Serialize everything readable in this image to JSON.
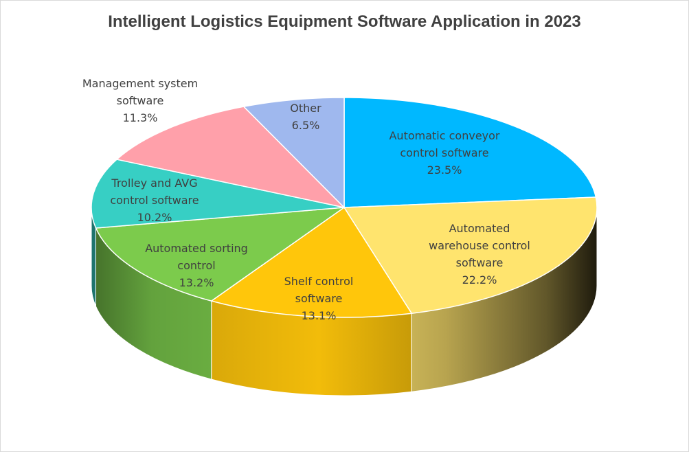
{
  "chart_data": {
    "type": "pie",
    "title": "Intelligent Logistics Equipment Software Application in 2023",
    "legend": "none",
    "slices": [
      {
        "label": "Automatic conveyor control software",
        "value": 23.5,
        "value_label": "23.5%",
        "color": "#00B8FF"
      },
      {
        "label": "Automated warehouse control software",
        "value": 22.2,
        "value_label": "22.2%",
        "color": "#FFE46E"
      },
      {
        "label": "Shelf control software",
        "value": 13.1,
        "value_label": "13.1%",
        "color": "#FFC60B"
      },
      {
        "label": "Automated sorting control",
        "value": 13.2,
        "value_label": "13.2%",
        "color": "#7CCB4C"
      },
      {
        "label": "Trolley and AVG control software",
        "value": 10.2,
        "value_label": "10.2%",
        "color": "#37CFC4"
      },
      {
        "label": "Management system software",
        "value": 11.3,
        "value_label": "11.3%",
        "color": "#FFA0AA"
      },
      {
        "label": "Other",
        "value": 6.5,
        "value_label": "6.5%",
        "color": "#9FB8EE"
      }
    ]
  }
}
